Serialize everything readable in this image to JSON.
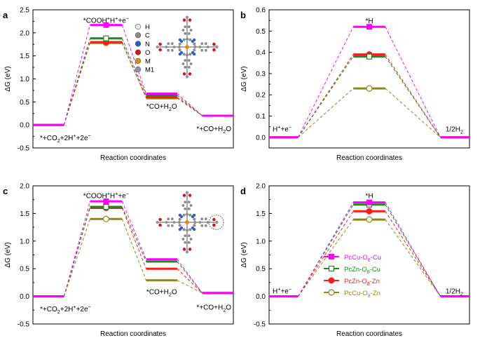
{
  "colors": {
    "PcCu-O8-Cu": "#ff00ff",
    "PcZn-O8-Cu": "#1a8a1a",
    "PcZn-O8-Zn": "#ff1a1a",
    "PcCu-O8-Zn": "#8a8a1a"
  },
  "legend": {
    "items": [
      {
        "key": "PcCu-O8-Cu",
        "main": "PcCu-O",
        "sub": "8",
        "rest": "-Cu",
        "marker": "filled-square"
      },
      {
        "key": "PcZn-O8-Cu",
        "main": "PcZn-O",
        "sub": "8",
        "rest": "-Cu",
        "marker": "open-square"
      },
      {
        "key": "PcZn-O8-Zn",
        "main": "PcZn-O",
        "sub": "8",
        "rest": "-Zn",
        "marker": "filled-circle"
      },
      {
        "key": "PcCu-O8-Zn",
        "main": "PcCu-O",
        "sub": "8",
        "rest": "-Zn",
        "marker": "open-circle"
      }
    ]
  },
  "atom_legend": [
    {
      "label": "H",
      "color": "#e8e8e8"
    },
    {
      "label": "C",
      "color": "#8c8c8c"
    },
    {
      "label": "N",
      "color": "#2a5bd7"
    },
    {
      "label": "O",
      "color": "#e01010"
    },
    {
      "label": "M",
      "color": "#e08a10"
    },
    {
      "label": "M1",
      "color": "#8c92b0"
    }
  ],
  "chart_data": [
    {
      "panel": "a",
      "type": "free-energy-diagram",
      "xlabel": "Reaction coordinates",
      "ylabel": "ΔG (eV)",
      "ylim": [
        -0.5,
        2.5
      ],
      "yticks": [
        "-0.5",
        "0.0",
        "0.5",
        "1.0",
        "1.5",
        "2.0",
        "2.5"
      ],
      "states": [
        "*+CO2+2H++2e−",
        "*COOH+H++e−",
        "*CO+H2O",
        "*+CO+H2O"
      ],
      "state_labels": [
        {
          "text": "*+CO2+2H++2e−",
          "y": -0.27
        },
        {
          "text": "*COOH+H++e−",
          "y": 2.28
        },
        {
          "text": "*CO+H2O",
          "y": 0.41
        },
        {
          "text": "*+CO+H2O",
          "y": -0.07
        }
      ],
      "series": [
        {
          "name": "PcCu-O8-Cu",
          "values": [
            0.0,
            2.17,
            0.68,
            0.2
          ]
        },
        {
          "name": "PcZn-O8-Cu",
          "values": [
            0.0,
            1.88,
            0.64,
            0.2
          ]
        },
        {
          "name": "PcZn-O8-Zn",
          "values": [
            0.0,
            1.8,
            0.6,
            0.2
          ]
        },
        {
          "name": "PcCu-O8-Zn",
          "values": [
            0.0,
            1.78,
            0.58,
            0.2
          ]
        }
      ],
      "markers_at_state": 1
    },
    {
      "panel": "b",
      "type": "free-energy-diagram",
      "xlabel": "Reaction coordinates",
      "ylabel": "ΔG (eV)",
      "ylim": [
        -0.05,
        0.6
      ],
      "yticks": [
        "0.0",
        "0.1",
        "0.2",
        "0.3",
        "0.4",
        "0.5",
        "0.6"
      ],
      "states": [
        "H++e−",
        "*H",
        "1/2H2"
      ],
      "state_labels": [
        {
          "text": "H++e−",
          "y": 0.04
        },
        {
          "text": "*H",
          "y": 0.55
        },
        {
          "text": "1/2H2",
          "y": 0.04
        }
      ],
      "series": [
        {
          "name": "PcCu-O8-Cu",
          "values": [
            0.0,
            0.52,
            0.0
          ]
        },
        {
          "name": "PcZn-O8-Cu",
          "values": [
            0.0,
            0.38,
            0.0
          ]
        },
        {
          "name": "PcZn-O8-Zn",
          "values": [
            0.0,
            0.39,
            0.0
          ]
        },
        {
          "name": "PcCu-O8-Zn",
          "values": [
            0.0,
            0.23,
            0.0
          ]
        }
      ],
      "markers_at_state": 1
    },
    {
      "panel": "c",
      "type": "free-energy-diagram",
      "xlabel": "Reaction coordinates",
      "ylabel": "ΔG (eV)",
      "ylim": [
        -0.5,
        2.0
      ],
      "yticks": [
        "-0.5",
        "0.0",
        "0.5",
        "1.0",
        "1.5",
        "2.0"
      ],
      "states": [
        "*+CO2+2H++2e−",
        "*COOH+H++e−",
        "*CO+H2O",
        "*+CO+H2O"
      ],
      "state_labels": [
        {
          "text": "*+CO2+2H++2e−",
          "y": -0.22
        },
        {
          "text": "*COOH+H++e−",
          "y": 1.83
        },
        {
          "text": "*CO+H2O",
          "y": 0.09
        },
        {
          "text": "*+CO+H2O",
          "y": -0.19
        }
      ],
      "series": [
        {
          "name": "PcCu-O8-Cu",
          "values": [
            0.0,
            1.72,
            0.67,
            0.06
          ]
        },
        {
          "name": "PcZn-O8-Cu",
          "values": [
            0.0,
            1.62,
            0.63,
            0.06
          ]
        },
        {
          "name": "PcZn-O8-Zn",
          "values": [
            0.0,
            1.6,
            0.5,
            0.06
          ]
        },
        {
          "name": "PcCu-O8-Zn",
          "values": [
            0.0,
            1.4,
            0.29,
            0.06
          ]
        }
      ],
      "markers_at_state": 1
    },
    {
      "panel": "d",
      "type": "free-energy-diagram",
      "xlabel": "Reaction coordinates",
      "ylabel": "ΔG (eV)",
      "ylim": [
        -0.5,
        2.0
      ],
      "yticks": [
        "-0.5",
        "0.0",
        "0.5",
        "1.0",
        "1.5",
        "2.0"
      ],
      "states": [
        "H++e−",
        "*H",
        "1/2H2"
      ],
      "state_labels": [
        {
          "text": "H++e−",
          "y": 0.1
        },
        {
          "text": "*H",
          "y": 1.83
        },
        {
          "text": "1/2H2",
          "y": 0.1
        }
      ],
      "series": [
        {
          "name": "PcCu-O8-Cu",
          "values": [
            0.0,
            1.7,
            0.0
          ]
        },
        {
          "name": "PcZn-O8-Cu",
          "values": [
            0.0,
            1.66,
            0.0
          ]
        },
        {
          "name": "PcZn-O8-Zn",
          "values": [
            0.0,
            1.54,
            0.0
          ]
        },
        {
          "name": "PcCu-O8-Zn",
          "values": [
            0.0,
            1.39,
            0.0
          ]
        }
      ],
      "markers_at_state": 1
    }
  ]
}
